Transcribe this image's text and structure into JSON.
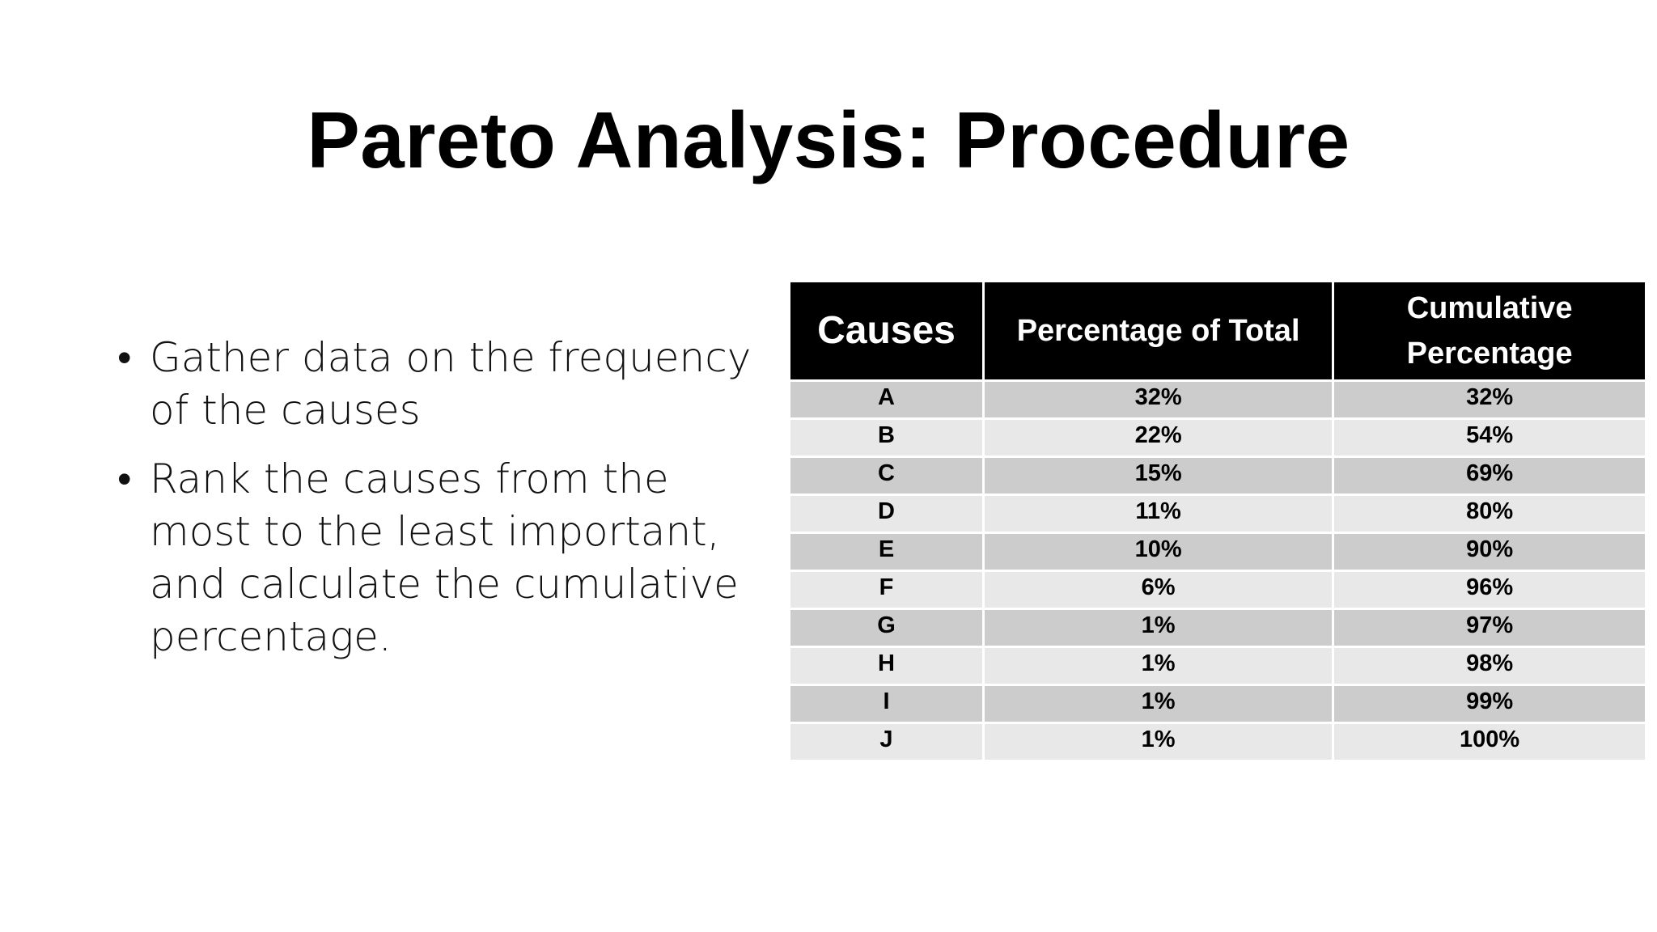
{
  "slide": {
    "title": "Pareto Analysis: Procedure",
    "bullets": [
      "Gather data on the frequency of the causes",
      "Rank the causes from the most to the least important, and calculate the cumulative percentage."
    ],
    "bullet_symbol": "•"
  },
  "table": {
    "headers": {
      "causes": "Causes",
      "percentage_of_total": "Percentage of Total",
      "cumulative_percentage_line1": "Cumulative",
      "cumulative_percentage_line2": "Percentage"
    },
    "rows": [
      {
        "cause": "A",
        "percentage": "32%",
        "cumulative": "32%"
      },
      {
        "cause": "B",
        "percentage": "22%",
        "cumulative": "54%"
      },
      {
        "cause": "C",
        "percentage": "15%",
        "cumulative": "69%"
      },
      {
        "cause": "D",
        "percentage": "11%",
        "cumulative": "80%"
      },
      {
        "cause": "E",
        "percentage": "10%",
        "cumulative": "90%"
      },
      {
        "cause": "F",
        "percentage": "6%",
        "cumulative": "96%"
      },
      {
        "cause": "G",
        "percentage": "1%",
        "cumulative": "97%"
      },
      {
        "cause": "H",
        "percentage": "1%",
        "cumulative": "98%"
      },
      {
        "cause": "I",
        "percentage": "1%",
        "cumulative": "99%"
      },
      {
        "cause": "J",
        "percentage": "1%",
        "cumulative": "100%"
      }
    ],
    "colors": {
      "header_bg": "#000000",
      "header_text": "#ffffff",
      "row_dark": "#cccccc",
      "row_light": "#e8e8e8"
    }
  }
}
